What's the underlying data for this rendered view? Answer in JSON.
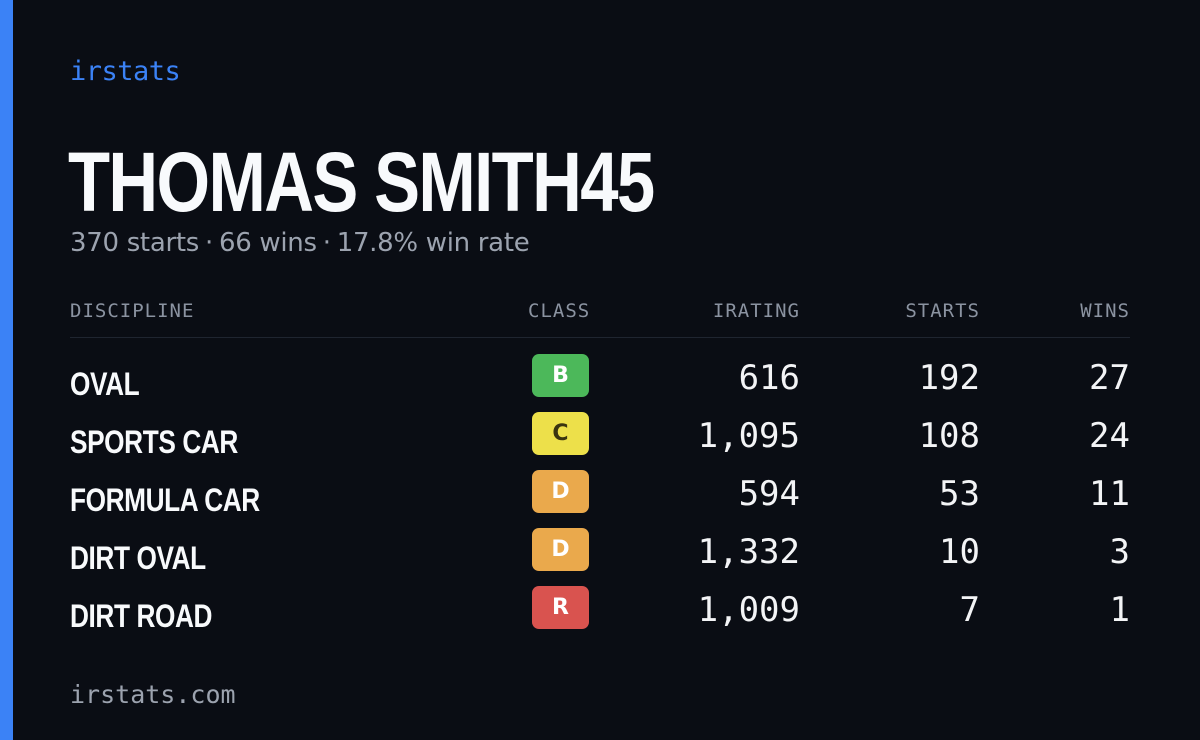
{
  "brand": "irstats",
  "driver": {
    "name": "THOMAS SMITH45",
    "summary": {
      "starts": "370 starts",
      "wins": "66 wins",
      "win_rate": "17.8% win rate",
      "separator": "·"
    }
  },
  "table": {
    "headers": {
      "discipline": "DISCIPLINE",
      "class": "CLASS",
      "irating": "IRATING",
      "starts": "STARTS",
      "wins": "WINS"
    },
    "rows": [
      {
        "discipline": "OVAL",
        "class": "B",
        "class_color": "#4cb85a",
        "class_text_color": "#ffffff",
        "irating": "616",
        "starts": "192",
        "wins": "27"
      },
      {
        "discipline": "SPORTS CAR",
        "class": "C",
        "class_color": "#ede04a",
        "class_text_color": "#3a3410",
        "irating": "1,095",
        "starts": "108",
        "wins": "24"
      },
      {
        "discipline": "FORMULA CAR",
        "class": "D",
        "class_color": "#eaa94c",
        "class_text_color": "#ffffff",
        "irating": "594",
        "starts": "53",
        "wins": "11"
      },
      {
        "discipline": "DIRT OVAL",
        "class": "D",
        "class_color": "#eaa94c",
        "class_text_color": "#ffffff",
        "irating": "1,332",
        "starts": "10",
        "wins": "3"
      },
      {
        "discipline": "DIRT ROAD",
        "class": "R",
        "class_color": "#d9534f",
        "class_text_color": "#ffffff",
        "irating": "1,009",
        "starts": "7",
        "wins": "1"
      }
    ]
  },
  "footer": "irstats.com",
  "colors": {
    "accent": "#3b82f6",
    "background": "#0a0d14"
  }
}
